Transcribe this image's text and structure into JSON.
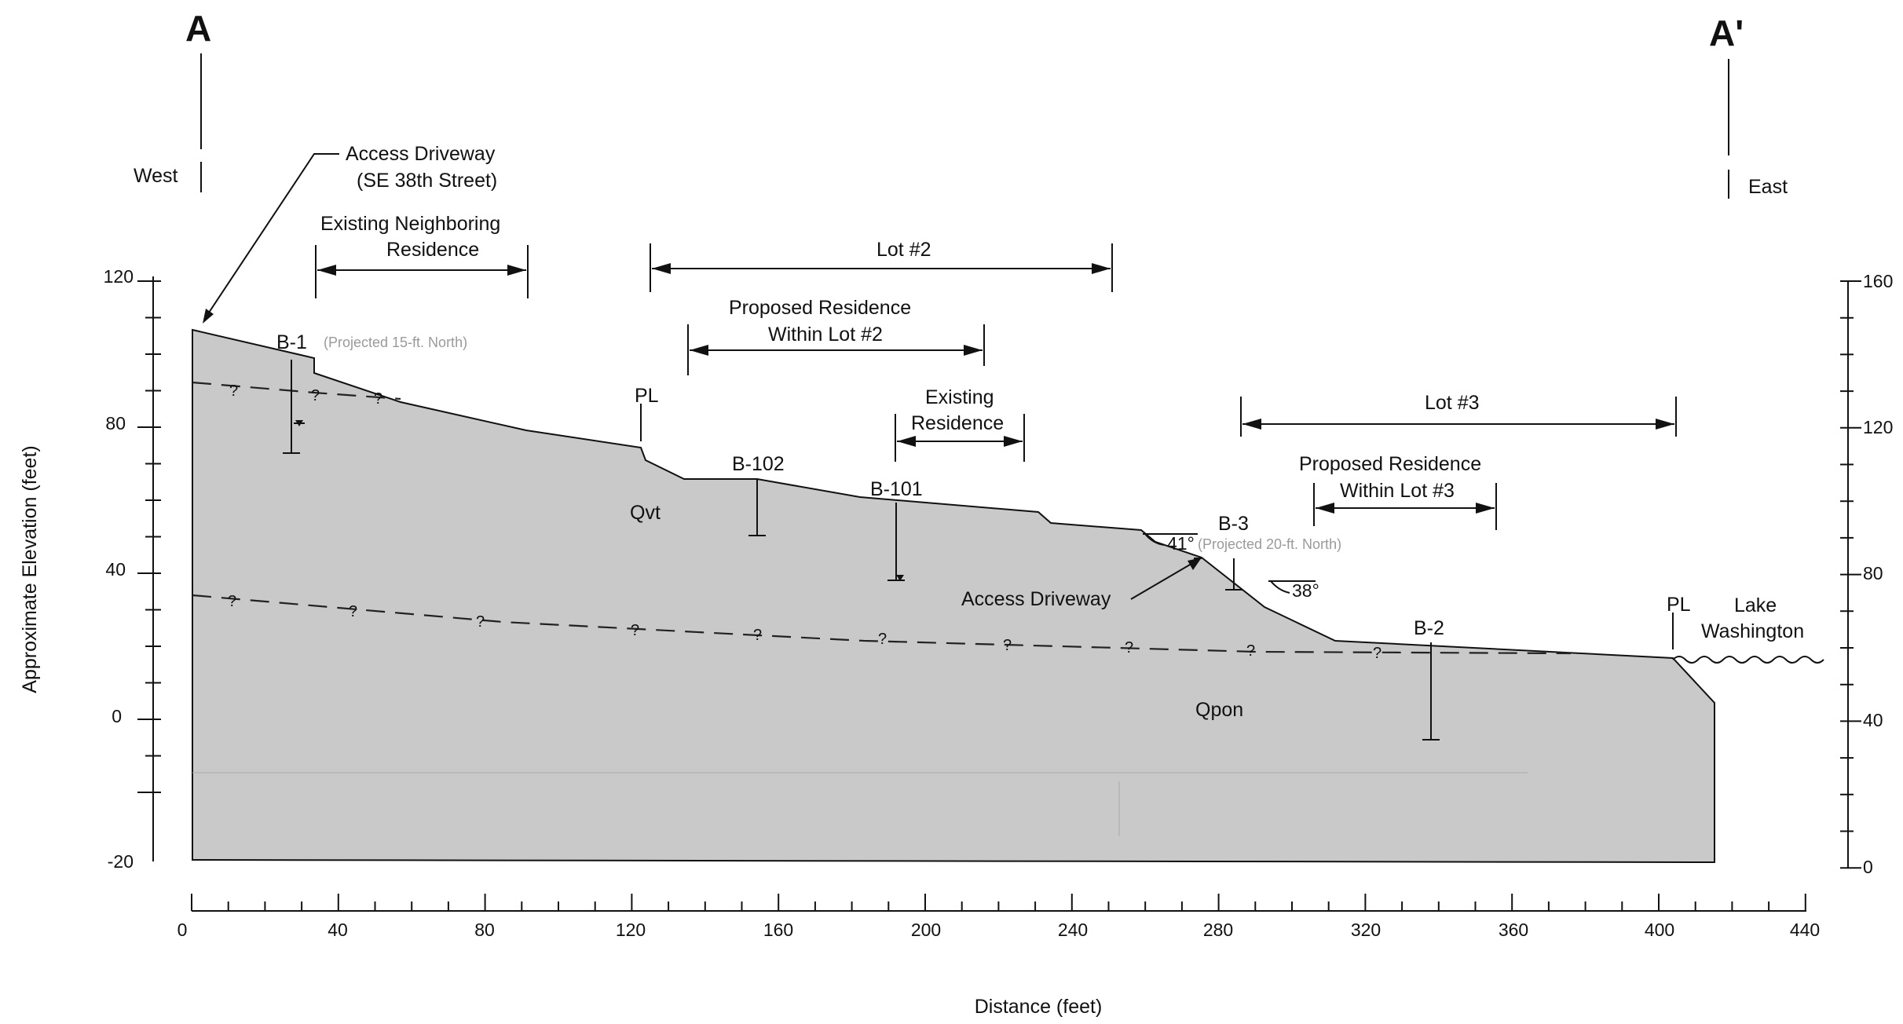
{
  "section": {
    "left_end": "A",
    "right_end": "A'",
    "west_label": "West",
    "east_label": "East",
    "x_axis_label": "Distance (feet)",
    "y_axis_label": "Approximate Elevation (feet)",
    "x_ticks": [
      "0",
      "40",
      "80",
      "120",
      "160",
      "200",
      "240",
      "280",
      "320",
      "360",
      "400",
      "440"
    ],
    "left_y_ticks": [
      "120",
      "80",
      "40",
      "0",
      "-20"
    ],
    "right_y_ticks": [
      "160",
      "120",
      "80",
      "40",
      "0"
    ]
  },
  "callouts": {
    "access_driveway_line1": "Access Driveway",
    "access_driveway_line2": "(SE 38th Street)",
    "existing_neighboring_line1": "Existing Neighboring",
    "existing_neighboring_line2": "Residence",
    "lot2": "Lot #2",
    "proposed_lot2_line1": "Proposed Residence",
    "proposed_lot2_line2": "Within Lot #2",
    "existing_res_line1": "Existing",
    "existing_res_line2": "Residence",
    "lot3": "Lot #3",
    "proposed_lot3_line1": "Proposed Residence",
    "proposed_lot3_line2": "Within Lot #3",
    "access_driveway_2": "Access Driveway",
    "lake_line1": "Lake",
    "lake_line2": "Washington",
    "pl_left": "PL",
    "pl_right": "PL",
    "angle_41": "41°",
    "angle_38": "38°"
  },
  "borings": {
    "b1": "B-1",
    "b1_note": "(Projected 15-ft. North)",
    "b102": "B-102",
    "b101": "B-101",
    "b3": "B-3",
    "b3_note": "(Projected 20-ft. North)",
    "b2": "B-2"
  },
  "units": {
    "qvt": "Qvt",
    "qpon": "Qpon",
    "unknown_mark": "?"
  },
  "colors": {
    "soil": "#c9c9c9",
    "line": "#111111"
  }
}
